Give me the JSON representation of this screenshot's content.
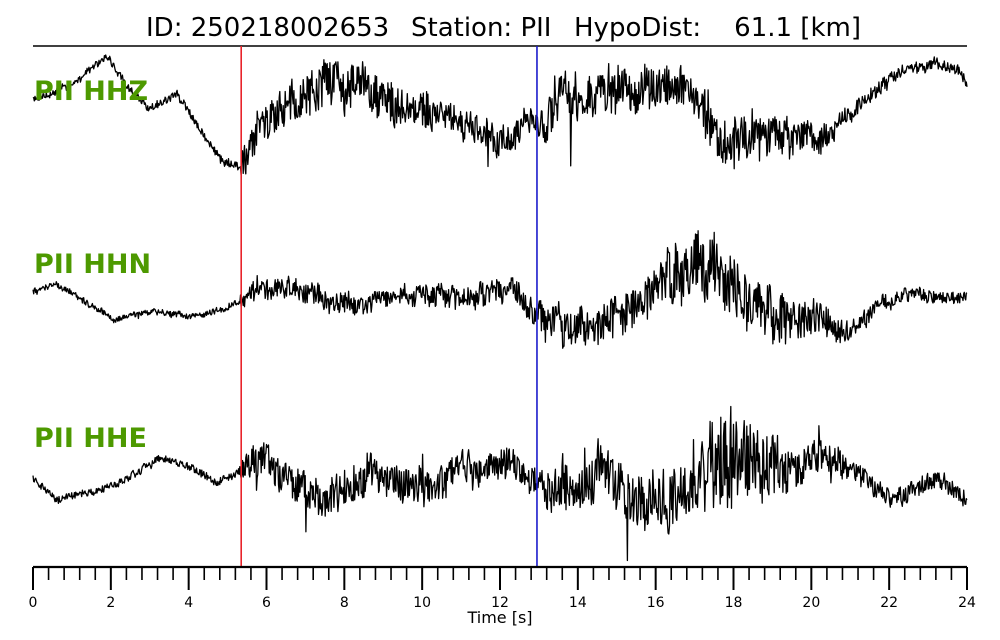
{
  "chart_data": {
    "type": "line",
    "title": {
      "id": "ID: 250218002653",
      "station": "Station: PII",
      "hypodist": "HypoDist:    61.1 [km]"
    },
    "xlabel": "Time [s]",
    "xlim": [
      0,
      24
    ],
    "x_major_ticks": [
      0,
      2,
      4,
      6,
      8,
      10,
      12,
      14,
      16,
      18,
      20,
      22,
      24
    ],
    "x_minor_step": 0.4,
    "grid": false,
    "colors": {
      "trace": "#000000",
      "label": "#4d9900",
      "p_pick": "#e8232a",
      "s_pick": "#1a1acc"
    },
    "picks": [
      {
        "name": "P",
        "t": 5.35,
        "color": "#e8232a"
      },
      {
        "name": "S",
        "t": 12.95,
        "color": "#1a1acc"
      }
    ],
    "series": [
      {
        "name": "PII HHZ",
        "envelope": [
          [
            0.0,
            0.35
          ],
          [
            1.0,
            0.55
          ],
          [
            1.9,
            0.9
          ],
          [
            2.5,
            0.5
          ],
          [
            3.0,
            0.25
          ],
          [
            3.7,
            0.45
          ],
          [
            4.3,
            0.0
          ],
          [
            4.9,
            -0.4
          ],
          [
            5.35,
            -0.45
          ],
          [
            5.8,
            0.05
          ],
          [
            6.6,
            0.35
          ],
          [
            7.5,
            0.6
          ],
          [
            8.2,
            0.6
          ],
          [
            9.3,
            0.35
          ],
          [
            10.5,
            0.2
          ],
          [
            11.5,
            0.05
          ],
          [
            12.3,
            -0.15
          ],
          [
            12.9,
            0.15
          ],
          [
            13.6,
            0.35
          ],
          [
            14.5,
            0.45
          ],
          [
            15.7,
            0.55
          ],
          [
            16.4,
            0.55
          ],
          [
            17.1,
            0.4
          ],
          [
            17.6,
            -0.05
          ],
          [
            18.4,
            -0.1
          ],
          [
            19.2,
            -0.05
          ],
          [
            20.3,
            -0.1
          ],
          [
            21.2,
            0.3
          ],
          [
            22.3,
            0.7
          ],
          [
            23.2,
            0.85
          ],
          [
            23.8,
            0.7
          ],
          [
            24.0,
            0.55
          ]
        ],
        "amplitude": [
          [
            0.0,
            0.06
          ],
          [
            5.3,
            0.06
          ],
          [
            5.4,
            0.35
          ],
          [
            6.5,
            0.3
          ],
          [
            8.0,
            0.45
          ],
          [
            9.5,
            0.3
          ],
          [
            11.5,
            0.25
          ],
          [
            12.9,
            0.25
          ],
          [
            13.0,
            0.4
          ],
          [
            15.5,
            0.35
          ],
          [
            16.5,
            0.35
          ],
          [
            17.3,
            0.4
          ],
          [
            18.5,
            0.4
          ],
          [
            20.0,
            0.25
          ],
          [
            21.0,
            0.12
          ],
          [
            24.0,
            0.08
          ]
        ]
      },
      {
        "name": "PII HHN",
        "envelope": [
          [
            0.0,
            0.1
          ],
          [
            0.6,
            0.2
          ],
          [
            1.3,
            0.0
          ],
          [
            2.1,
            -0.25
          ],
          [
            3.0,
            -0.15
          ],
          [
            4.2,
            -0.2
          ],
          [
            5.0,
            -0.1
          ],
          [
            5.35,
            0.0
          ],
          [
            5.6,
            0.15
          ],
          [
            6.5,
            0.15
          ],
          [
            7.5,
            0.0
          ],
          [
            8.5,
            -0.05
          ],
          [
            9.5,
            0.05
          ],
          [
            10.5,
            0.05
          ],
          [
            11.6,
            0.05
          ],
          [
            12.3,
            0.15
          ],
          [
            12.9,
            -0.15
          ],
          [
            13.6,
            -0.35
          ],
          [
            14.3,
            -0.3
          ],
          [
            15.3,
            -0.15
          ],
          [
            16.2,
            0.15
          ],
          [
            17.0,
            0.45
          ],
          [
            17.6,
            0.4
          ],
          [
            18.2,
            -0.05
          ],
          [
            19.0,
            -0.2
          ],
          [
            20.0,
            -0.25
          ],
          [
            20.9,
            -0.4
          ],
          [
            21.7,
            -0.05
          ],
          [
            22.6,
            0.1
          ],
          [
            23.4,
            0.0
          ],
          [
            24.0,
            0.05
          ]
        ],
        "amplitude": [
          [
            0.0,
            0.05
          ],
          [
            5.3,
            0.05
          ],
          [
            5.4,
            0.2
          ],
          [
            9.0,
            0.15
          ],
          [
            12.0,
            0.2
          ],
          [
            12.9,
            0.2
          ],
          [
            13.0,
            0.3
          ],
          [
            15.5,
            0.3
          ],
          [
            17.3,
            0.5
          ],
          [
            18.5,
            0.45
          ],
          [
            20.0,
            0.3
          ],
          [
            21.0,
            0.15
          ],
          [
            24.0,
            0.08
          ]
        ]
      },
      {
        "name": "PII HHE",
        "envelope": [
          [
            0.0,
            -0.05
          ],
          [
            0.6,
            -0.3
          ],
          [
            1.6,
            -0.2
          ],
          [
            2.4,
            -0.05
          ],
          [
            3.2,
            0.2
          ],
          [
            4.0,
            0.1
          ],
          [
            4.7,
            -0.1
          ],
          [
            5.35,
            0.05
          ],
          [
            5.9,
            0.15
          ],
          [
            6.7,
            -0.05
          ],
          [
            7.5,
            -0.35
          ],
          [
            8.2,
            -0.1
          ],
          [
            9.0,
            0.05
          ],
          [
            10.0,
            -0.15
          ],
          [
            11.0,
            0.0
          ],
          [
            11.8,
            0.15
          ],
          [
            12.3,
            0.2
          ],
          [
            12.9,
            -0.1
          ],
          [
            13.8,
            -0.2
          ],
          [
            14.6,
            0.0
          ],
          [
            15.5,
            -0.3
          ],
          [
            16.3,
            -0.35
          ],
          [
            17.2,
            0.0
          ],
          [
            18.0,
            0.05
          ],
          [
            18.6,
            0.05
          ],
          [
            19.3,
            0.05
          ],
          [
            20.3,
            0.25
          ],
          [
            21.3,
            0.0
          ],
          [
            22.2,
            -0.3
          ],
          [
            23.0,
            -0.05
          ],
          [
            23.6,
            -0.15
          ],
          [
            24.0,
            -0.3
          ]
        ],
        "amplitude": [
          [
            0.0,
            0.06
          ],
          [
            5.3,
            0.06
          ],
          [
            5.4,
            0.25
          ],
          [
            8.0,
            0.3
          ],
          [
            12.5,
            0.25
          ],
          [
            12.9,
            0.25
          ],
          [
            13.0,
            0.3
          ],
          [
            15.0,
            0.4
          ],
          [
            17.0,
            0.45
          ],
          [
            18.0,
            0.85
          ],
          [
            18.6,
            0.6
          ],
          [
            20.0,
            0.3
          ],
          [
            21.0,
            0.18
          ],
          [
            24.0,
            0.12
          ]
        ]
      }
    ]
  }
}
